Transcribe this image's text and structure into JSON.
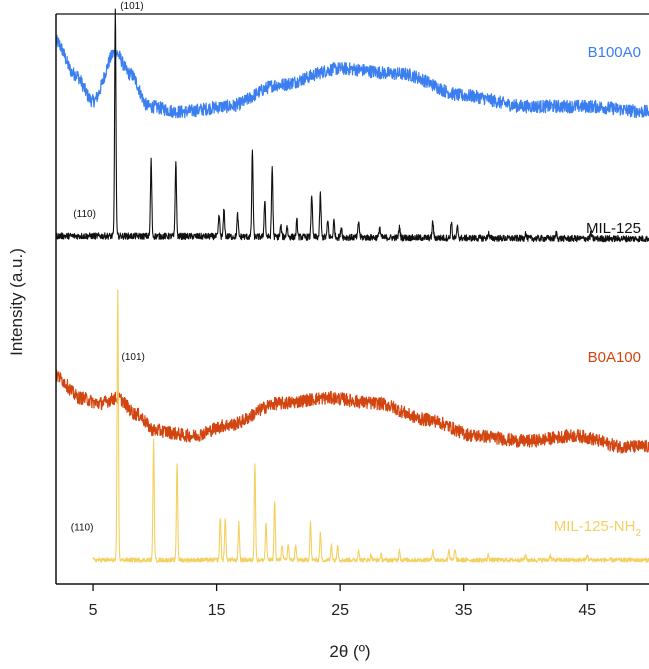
{
  "chart_data": {
    "type": "line",
    "title": "",
    "xlabel": "2θ (º)",
    "ylabel": "Intensity (a.u.)",
    "xlim": [
      2,
      50
    ],
    "x_ticks": [
      5,
      15,
      25,
      35,
      45
    ],
    "y_ticks": [],
    "grid": false,
    "legend": "inline labels at right end of each trace",
    "series": [
      {
        "name": "B100A0",
        "color": "#3a7ef0",
        "kind": "amorphous",
        "offset": 0.9,
        "background": [
          [
            2,
            0.06
          ],
          [
            3.5,
            0.0
          ],
          [
            5,
            -0.05
          ],
          [
            6.8,
            0.04
          ],
          [
            8,
            0.0
          ],
          [
            9.5,
            -0.06
          ],
          [
            12,
            -0.07
          ],
          [
            16,
            -0.06
          ],
          [
            20,
            -0.02
          ],
          [
            25,
            0.01
          ],
          [
            30,
            0.0
          ],
          [
            35,
            -0.04
          ],
          [
            40,
            -0.06
          ],
          [
            45,
            -0.06
          ],
          [
            50,
            -0.07
          ]
        ],
        "peaks": [],
        "noise": 0.012
      },
      {
        "name": "MIL-125",
        "color": "#111111",
        "kind": "crystalline",
        "offset": 0.6,
        "background": [
          [
            2,
            0.0
          ],
          [
            50,
            -0.005
          ]
        ],
        "peaks": [
          [
            6.8,
            0.42
          ],
          [
            9.7,
            0.14
          ],
          [
            11.7,
            0.14
          ],
          [
            15.2,
            0.04
          ],
          [
            15.6,
            0.05
          ],
          [
            16.7,
            0.04
          ],
          [
            17.9,
            0.16
          ],
          [
            18.9,
            0.07
          ],
          [
            19.5,
            0.13
          ],
          [
            20.2,
            0.02
          ],
          [
            20.7,
            0.02
          ],
          [
            21.5,
            0.03
          ],
          [
            22.7,
            0.08
          ],
          [
            23.4,
            0.08
          ],
          [
            24.0,
            0.03
          ],
          [
            24.5,
            0.03
          ],
          [
            25.1,
            0.02
          ],
          [
            26.5,
            0.03
          ],
          [
            28.2,
            0.02
          ],
          [
            29.8,
            0.02
          ],
          [
            32.5,
            0.03
          ],
          [
            34.0,
            0.03
          ],
          [
            34.5,
            0.02
          ],
          [
            37.0,
            0.01
          ],
          [
            40.0,
            0.01
          ],
          [
            42.5,
            0.01
          ],
          [
            45.3,
            0.01
          ]
        ],
        "noise": 0.006
      },
      {
        "name": "B0A100",
        "color": "#d24510",
        "kind": "amorphous",
        "offset": 0.3,
        "background": [
          [
            2,
            0.04
          ],
          [
            4,
            0.0
          ],
          [
            5.5,
            -0.01
          ],
          [
            7,
            0.0
          ],
          [
            8.5,
            -0.03
          ],
          [
            10,
            -0.06
          ],
          [
            13,
            -0.07
          ],
          [
            16,
            -0.05
          ],
          [
            20,
            -0.01
          ],
          [
            24,
            0.0
          ],
          [
            28,
            -0.01
          ],
          [
            32,
            -0.04
          ],
          [
            36,
            -0.07
          ],
          [
            40,
            -0.08
          ],
          [
            44,
            -0.07
          ],
          [
            48,
            -0.09
          ],
          [
            50,
            -0.09
          ]
        ],
        "peaks": [],
        "noise": 0.012
      },
      {
        "name": "MIL-125-NH2",
        "color": "#f4d060",
        "kind": "crystalline",
        "offset": 0.0,
        "background": [
          [
            5,
            0.0
          ],
          [
            50,
            0.0
          ]
        ],
        "peaks": [
          [
            7.0,
            0.5
          ],
          [
            9.9,
            0.22
          ],
          [
            11.8,
            0.18
          ],
          [
            15.3,
            0.08
          ],
          [
            15.7,
            0.08
          ],
          [
            16.8,
            0.07
          ],
          [
            18.1,
            0.18
          ],
          [
            19.0,
            0.07
          ],
          [
            19.7,
            0.11
          ],
          [
            20.3,
            0.03
          ],
          [
            20.8,
            0.03
          ],
          [
            21.4,
            0.03
          ],
          [
            22.6,
            0.07
          ],
          [
            23.4,
            0.05
          ],
          [
            24.3,
            0.03
          ],
          [
            24.8,
            0.03
          ],
          [
            26.5,
            0.02
          ],
          [
            27.5,
            0.01
          ],
          [
            28.3,
            0.01
          ],
          [
            29.8,
            0.02
          ],
          [
            32.5,
            0.02
          ],
          [
            33.8,
            0.02
          ],
          [
            34.3,
            0.02
          ],
          [
            37.0,
            0.01
          ],
          [
            40.0,
            0.01
          ],
          [
            42.0,
            0.01
          ],
          [
            45.0,
            0.01
          ]
        ],
        "noise": 0.004
      }
    ],
    "annotations": [
      {
        "text": "(101)",
        "series": "MIL-125",
        "x": 7.2,
        "y_offset": 0.42
      },
      {
        "text": "(110)",
        "series": "MIL-125",
        "x": 3.4,
        "y_offset": 0.035
      },
      {
        "text": "(101)",
        "series": "MIL-125-NH2",
        "x": 7.3,
        "y_offset": 0.37
      },
      {
        "text": "(110)",
        "series": "MIL-125-NH2",
        "x": 3.2,
        "y_offset": 0.055
      }
    ]
  },
  "labels": {
    "series_display": {
      "B100A0": "B100A0",
      "MIL-125": "MIL-125",
      "B0A100": "B0A100",
      "MIL-125-NH2_main": "MIL-125-NH",
      "MIL-125-NH2_sub": "2"
    }
  }
}
